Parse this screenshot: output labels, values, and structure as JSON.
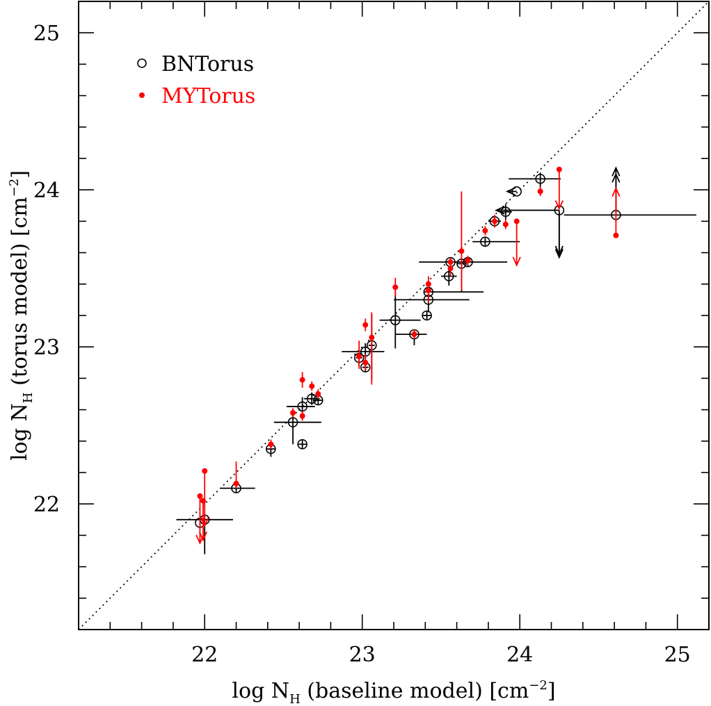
{
  "chart_data": {
    "type": "scatter",
    "title": "",
    "xlabel": {
      "prefix": "log N",
      "sub": "H",
      "suffix": " (baseline model)   [cm",
      "sup": "−2",
      "end": "]"
    },
    "ylabel": {
      "prefix": "log N",
      "sub": "H",
      "suffix": " (torus model)   [cm",
      "sup": "−2",
      "end": "]"
    },
    "xlim": [
      21.2,
      25.2
    ],
    "ylim": [
      21.2,
      25.2
    ],
    "x_ticks": [
      "22",
      "23",
      "24",
      "25"
    ],
    "y_ticks": [
      "22",
      "23",
      "24",
      "25"
    ],
    "minor_tick_step": 0.2,
    "one_to_one_line": true,
    "legend": {
      "position": "top-left",
      "entries": [
        {
          "label": "BNTorus",
          "marker": "open-circle",
          "color": "#000000"
        },
        {
          "label": "MYTorus",
          "marker": "filled-dot",
          "color": "#ff0000"
        }
      ]
    },
    "series": [
      {
        "name": "BNTorus",
        "color": "#000000",
        "marker": "open-circle",
        "points": [
          {
            "x": 22.0,
            "y": 21.9,
            "xerr": [
              0.18,
              0.18
            ],
            "yerr": [
              0.22,
              0.02
            ]
          },
          {
            "x": 21.97,
            "y": 21.88,
            "xerr": [
              0.0,
              0.0
            ],
            "yerr": [
              0.03,
              0.03
            ]
          },
          {
            "x": 22.2,
            "y": 22.1,
            "xerr": [
              0.1,
              0.12
            ],
            "yerr": [
              0.03,
              0.03
            ]
          },
          {
            "x": 22.42,
            "y": 22.35,
            "xerr": [
              0.03,
              0.03
            ],
            "yerr": [
              0.05,
              0.05
            ]
          },
          {
            "x": 22.56,
            "y": 22.52,
            "xerr": [
              0.12,
              0.18
            ],
            "yerr": [
              0.14,
              0.08
            ]
          },
          {
            "x": 22.62,
            "y": 22.38,
            "xerr": [
              0.03,
              0.03
            ],
            "yerr": [
              0.03,
              0.03
            ]
          },
          {
            "x": 22.62,
            "y": 22.62,
            "xerr": [
              0.1,
              0.08
            ],
            "yerr": [
              0.08,
              0.06
            ]
          },
          {
            "x": 22.68,
            "y": 22.67,
            "xerr": [
              0.05,
              0.05
            ],
            "yerr": [
              0.04,
              0.04
            ]
          },
          {
            "x": 22.72,
            "y": 22.66,
            "xerr": [
              0.03,
              0.03
            ],
            "yerr": [
              0.03,
              0.03
            ]
          },
          {
            "x": 22.98,
            "y": 22.93,
            "xerr": [
              0.02,
              0.02
            ],
            "yerr": [
              0.05,
              0.05
            ]
          },
          {
            "x": 23.02,
            "y": 22.97,
            "xerr": [
              0.15,
              0.12
            ],
            "yerr": [
              0.05,
              0.05
            ]
          },
          {
            "x": 23.02,
            "y": 22.87,
            "xerr": [
              0.02,
              0.02
            ],
            "yerr": [
              0.03,
              0.03
            ]
          },
          {
            "x": 23.06,
            "y": 23.01,
            "xerr": [
              0.02,
              0.02
            ],
            "yerr": [
              0.22,
              0.2
            ]
          },
          {
            "x": 23.21,
            "y": 23.17,
            "xerr": [
              0.1,
              0.16
            ],
            "yerr": [
              0.18,
              0.18
            ]
          },
          {
            "x": 23.33,
            "y": 23.08,
            "xerr": [
              0.12,
              0.08
            ],
            "yerr": [
              0.07,
              0.03
            ]
          },
          {
            "x": 23.41,
            "y": 23.2,
            "xerr": [
              0.03,
              0.03
            ],
            "yerr": [
              0.03,
              0.03
            ]
          },
          {
            "x": 23.42,
            "y": 23.3,
            "xerr": [
              0.22,
              0.26
            ],
            "yerr": [
              0.08,
              0.02
            ]
          },
          {
            "x": 23.42,
            "y": 23.35,
            "xerr": [
              0.03,
              0.35
            ],
            "yerr": [
              0.03,
              0.03
            ]
          },
          {
            "x": 23.55,
            "y": 23.45,
            "xerr": [
              0.05,
              0.05
            ],
            "yerr": [
              0.06,
              0.06
            ]
          },
          {
            "x": 23.56,
            "y": 23.54,
            "xerr": [
              0.2,
              0.36
            ],
            "yerr": [
              0.03,
              0.03
            ]
          },
          {
            "x": 23.63,
            "y": 23.53,
            "xerr": [
              0.03,
              0.03
            ],
            "yerr": [
              0.18,
              0.03
            ]
          },
          {
            "x": 23.67,
            "y": 23.54,
            "xerr": [
              0.03,
              0.03
            ],
            "yerr": [
              0.03,
              0.03
            ]
          },
          {
            "x": 23.78,
            "y": 23.67,
            "xerr": [
              0.08,
              0.22
            ],
            "yerr": [
              0.03,
              0.03
            ]
          },
          {
            "x": 23.84,
            "y": 23.8,
            "xerr": [
              0.04,
              0.04
            ],
            "yerr": [
              0.04,
              0.04
            ]
          },
          {
            "x": 23.91,
            "y": 23.86,
            "xerr": [
              0.04,
              0.04
            ],
            "yerr": [
              0.05,
              0.05
            ]
          },
          {
            "x": 23.98,
            "y": 23.99,
            "xerr": [
              0.06,
              0.0
            ],
            "yerr": [
              0.0,
              0.0
            ],
            "x_upper_limit": true
          },
          {
            "x": 24.13,
            "y": 24.07,
            "xerr": [
              0.2,
              0.13
            ],
            "yerr": [
              0.06,
              0.04
            ]
          },
          {
            "x": 24.25,
            "y": 23.87,
            "xerr": [
              0.4,
              0.0
            ],
            "yerr": [
              0.0,
              0.0
            ],
            "x_upper_limit": true,
            "y_upper_limit": true
          },
          {
            "x": 24.61,
            "y": 23.84,
            "xerr": [
              0.33,
              0.51
            ],
            "yerr": [
              0.0,
              0.0
            ],
            "y_lower_limit": true
          }
        ]
      },
      {
        "name": "MYTorus",
        "color": "#ff0000",
        "marker": "filled-dot",
        "points": [
          {
            "x": 21.97,
            "y": 22.05,
            "yerr": [
              0.3,
              0.0
            ],
            "y_upper_limit": true
          },
          {
            "x": 22.0,
            "y": 22.21,
            "yerr": [
              0.35,
              0.0
            ],
            "y_upper_limit": true
          },
          {
            "x": 21.99,
            "y": 22.02,
            "yerr": [
              0.25,
              0.0
            ],
            "y_upper_limit": true
          },
          {
            "x": 22.2,
            "y": 22.13,
            "yerr": [
              0.03,
              0.14
            ]
          },
          {
            "x": 22.42,
            "y": 22.38,
            "yerr": [
              0.03,
              0.03
            ]
          },
          {
            "x": 22.56,
            "y": 22.58,
            "yerr": [
              0.03,
              0.03
            ]
          },
          {
            "x": 22.62,
            "y": 22.79,
            "yerr": [
              0.05,
              0.05
            ]
          },
          {
            "x": 22.62,
            "y": 22.56,
            "yerr": [
              0.03,
              0.03
            ]
          },
          {
            "x": 22.68,
            "y": 22.75,
            "yerr": [
              0.03,
              0.03
            ]
          },
          {
            "x": 22.72,
            "y": 22.7,
            "yerr": [
              0.03,
              0.03
            ]
          },
          {
            "x": 22.98,
            "y": 22.94,
            "yerr": [
              0.08,
              0.1
            ]
          },
          {
            "x": 23.02,
            "y": 23.14,
            "yerr": [
              0.04,
              0.04
            ]
          },
          {
            "x": 23.02,
            "y": 22.9,
            "yerr": [
              0.05,
              0.05
            ]
          },
          {
            "x": 23.06,
            "y": 23.06,
            "yerr": [
              0.3,
              0.16
            ]
          },
          {
            "x": 23.21,
            "y": 23.38,
            "yerr": [
              0.06,
              0.06
            ]
          },
          {
            "x": 23.33,
            "y": 23.08,
            "yerr": [
              0.03,
              0.03
            ]
          },
          {
            "x": 23.42,
            "y": 23.4,
            "yerr": [
              0.12,
              0.05
            ]
          },
          {
            "x": 23.42,
            "y": 23.36,
            "yerr": [
              0.03,
              0.03
            ]
          },
          {
            "x": 23.56,
            "y": 23.5,
            "yerr": [
              0.05,
              0.05
            ]
          },
          {
            "x": 23.56,
            "y": 23.54,
            "yerr": [
              0.03,
              0.03
            ]
          },
          {
            "x": 23.63,
            "y": 23.61,
            "yerr": [
              0.25,
              0.38
            ]
          },
          {
            "x": 23.67,
            "y": 23.55,
            "yerr": [
              0.03,
              0.03
            ]
          },
          {
            "x": 23.78,
            "y": 23.74,
            "yerr": [
              0.03,
              0.03
            ]
          },
          {
            "x": 23.84,
            "y": 23.8,
            "yerr": [
              0.04,
              0.04
            ]
          },
          {
            "x": 23.91,
            "y": 23.78,
            "yerr": [
              0.03,
              0.03
            ]
          },
          {
            "x": 23.98,
            "y": 23.8,
            "yerr": [
              0.28,
              0.0
            ],
            "y_upper_limit": true
          },
          {
            "x": 24.13,
            "y": 23.99,
            "yerr": [
              0.03,
              0.03
            ]
          },
          {
            "x": 24.25,
            "y": 24.13,
            "yerr": [
              0.25,
              0.0
            ],
            "y_upper_limit": true
          },
          {
            "x": 24.61,
            "y": 23.71,
            "yerr": [
              0.0,
              0.3
            ],
            "y_lower_limit": true
          }
        ]
      }
    ]
  }
}
